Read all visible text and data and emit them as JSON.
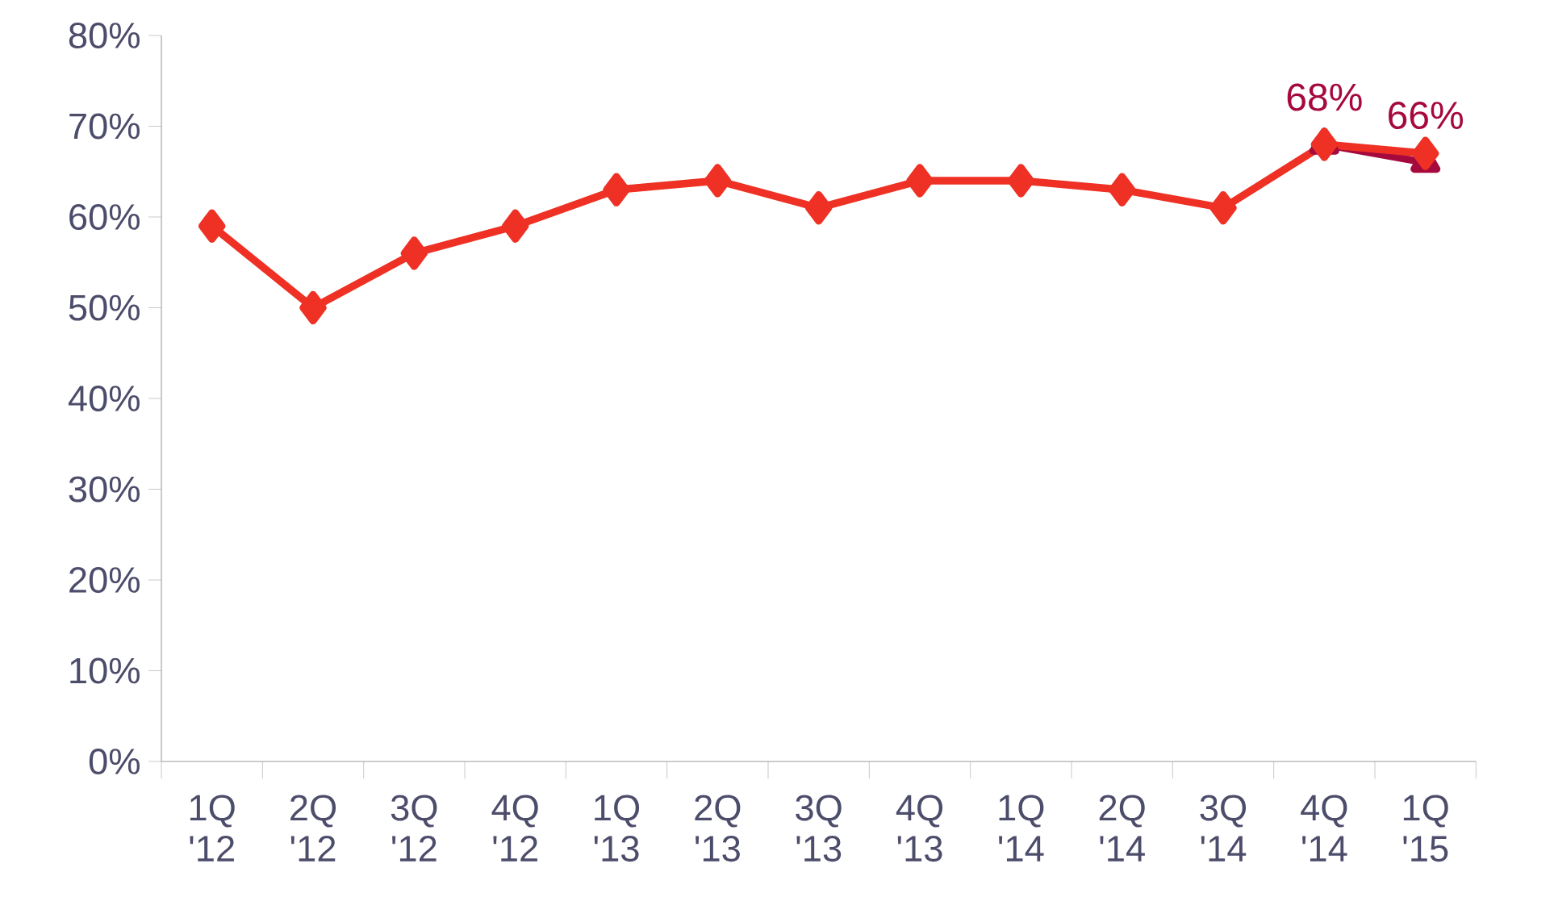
{
  "chart_data": {
    "type": "line",
    "categories": [
      "1Q '12",
      "2Q '12",
      "3Q '12",
      "4Q '12",
      "1Q '13",
      "2Q '13",
      "3Q '13",
      "4Q '13",
      "1Q '14",
      "2Q '14",
      "3Q '14",
      "4Q '14",
      "1Q '15"
    ],
    "series": [
      {
        "color": "#a6093d",
        "marker": "triangle",
        "values": [
          null,
          null,
          null,
          null,
          null,
          null,
          null,
          null,
          null,
          null,
          null,
          68,
          66
        ],
        "value_labels": [
          null,
          null,
          null,
          null,
          null,
          null,
          null,
          null,
          null,
          null,
          null,
          "68%",
          "66%"
        ]
      },
      {
        "color": "#ee3124",
        "marker": "diamond",
        "values": [
          59,
          50,
          56,
          59,
          63,
          64,
          61,
          64,
          64,
          63,
          61,
          68,
          67
        ]
      }
    ],
    "ylim": [
      0,
      80
    ],
    "yticks": [
      {
        "value": 0,
        "label": "0%"
      },
      {
        "value": 10,
        "label": "10%"
      },
      {
        "value": 20,
        "label": "20%"
      },
      {
        "value": 30,
        "label": "30%"
      },
      {
        "value": 40,
        "label": "40%"
      },
      {
        "value": 50,
        "label": "50%"
      },
      {
        "value": 60,
        "label": "60%"
      },
      {
        "value": 70,
        "label": "70%"
      },
      {
        "value": 80,
        "label": "80%"
      }
    ],
    "grid": false
  }
}
